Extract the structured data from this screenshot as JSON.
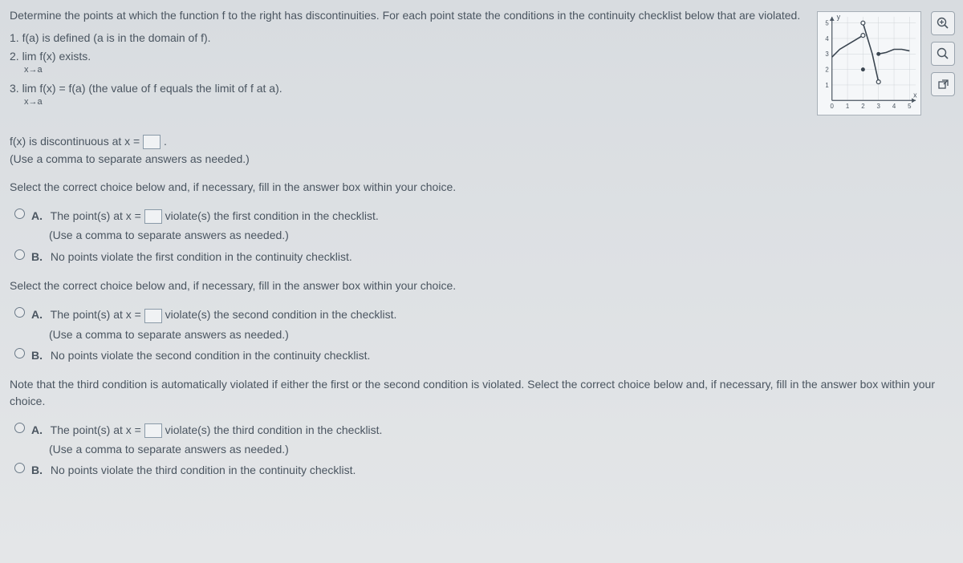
{
  "question": {
    "header": "Determine the points at which the function f to the right has discontinuities. For each point state the conditions in the continuity checklist below that are violated.",
    "cond1": "1. f(a) is defined (a is in the domain of f).",
    "cond2": "2. lim f(x) exists.",
    "cond2_sub": "x→a",
    "cond3": "3. lim f(x) = f(a) (the value of f equals the limit of f at a).",
    "cond3_sub": "x→a"
  },
  "answer1": {
    "text_pre": "f(x) is discontinuous at x = ",
    "text_post": ".",
    "note": "(Use a comma to separate answers as needed.)"
  },
  "section1": {
    "instruction": "Select the correct choice below and, if necessary, fill in the answer box within your choice.",
    "optA_label": "A.",
    "optA_pre": "The point(s) at x = ",
    "optA_post": " violate(s) the first condition in the checklist.",
    "optA_note": "(Use a comma to separate answers as needed.)",
    "optB_label": "B.",
    "optB": "No points violate the first condition in the continuity checklist."
  },
  "section2": {
    "instruction": "Select the correct choice below and, if necessary, fill in the answer box within your choice.",
    "optA_label": "A.",
    "optA_pre": "The point(s) at x = ",
    "optA_post": " violate(s) the second condition in the checklist.",
    "optA_note": "(Use a comma to separate answers as needed.)",
    "optB_label": "B.",
    "optB": "No points violate the second condition in the continuity checklist."
  },
  "section3": {
    "note": "Note that the third condition is automatically violated if either the first or the second condition is violated. Select the correct choice below and, if necessary, fill in the answer box within your choice.",
    "optA_label": "A.",
    "optA_pre": "The point(s) at x = ",
    "optA_post": " violate(s) the third condition in the checklist.",
    "optA_note": "(Use a comma to separate answers as needed.)",
    "optB_label": "B.",
    "optB": "No points violate the third condition in the continuity checklist."
  },
  "graph": {
    "y_label": "y",
    "x_label": "x",
    "x_ticks": [
      0,
      1,
      2,
      3,
      4,
      5
    ],
    "y_ticks": [
      1,
      2,
      3,
      4,
      5
    ],
    "axis_color": "#4a5560",
    "grid_color": "#d0d4d8",
    "curve_color": "#3a4550",
    "curve1": [
      [
        0,
        2.8
      ],
      [
        0.5,
        3.3
      ],
      [
        1,
        3.6
      ],
      [
        1.5,
        3.9
      ],
      [
        2,
        4.2
      ]
    ],
    "curve2": [
      [
        2,
        5
      ],
      [
        2.3,
        4.0
      ],
      [
        2.6,
        3.0
      ],
      [
        3,
        1.2
      ]
    ],
    "curve3": [
      [
        3,
        3.0
      ],
      [
        3.5,
        3.1
      ],
      [
        4,
        3.3
      ],
      [
        4.5,
        3.3
      ],
      [
        5,
        3.2
      ]
    ],
    "open_circles": [
      [
        2,
        4.2
      ],
      [
        2,
        5
      ],
      [
        3,
        1.2
      ]
    ],
    "closed_circles": [
      [
        3,
        3.0
      ],
      [
        2,
        2.0
      ]
    ],
    "xlim": [
      0,
      5.4
    ],
    "ylim": [
      0,
      5.4
    ]
  },
  "buttons": {
    "zoom_in": "⊕",
    "zoom_out": "🔍",
    "popout": "⧉"
  }
}
